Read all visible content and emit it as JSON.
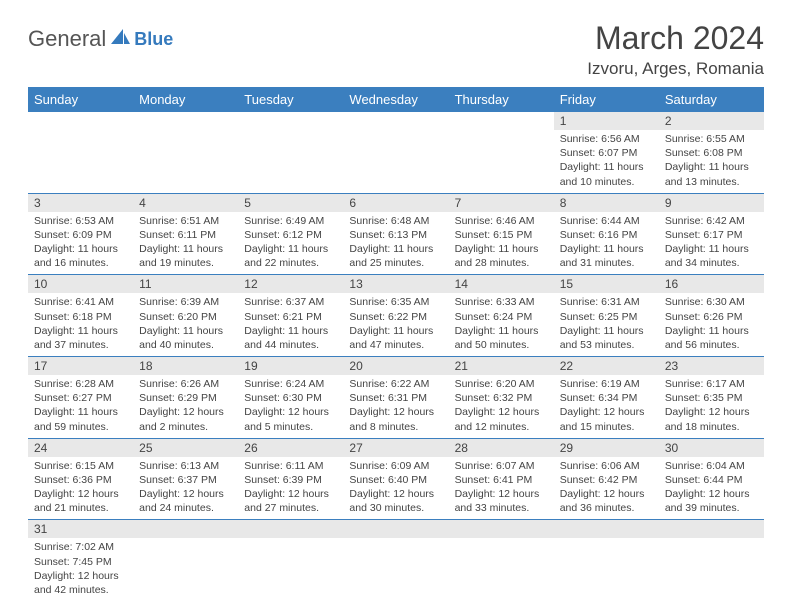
{
  "logo": {
    "text1": "General",
    "text2": "Blue"
  },
  "title": "March 2024",
  "location": "Izvoru, Arges, Romania",
  "colors": {
    "header_bg": "#3b7fbf",
    "daynum_bg": "#e8e8e8",
    "border": "#3b7fbf",
    "text": "#444444",
    "logo_gray": "#555555",
    "logo_blue": "#357abd"
  },
  "day_headers": [
    "Sunday",
    "Monday",
    "Tuesday",
    "Wednesday",
    "Thursday",
    "Friday",
    "Saturday"
  ],
  "weeks": [
    [
      null,
      null,
      null,
      null,
      null,
      {
        "n": "1",
        "sr": "6:56 AM",
        "ss": "6:07 PM",
        "dl": "11 hours and 10 minutes."
      },
      {
        "n": "2",
        "sr": "6:55 AM",
        "ss": "6:08 PM",
        "dl": "11 hours and 13 minutes."
      }
    ],
    [
      {
        "n": "3",
        "sr": "6:53 AM",
        "ss": "6:09 PM",
        "dl": "11 hours and 16 minutes."
      },
      {
        "n": "4",
        "sr": "6:51 AM",
        "ss": "6:11 PM",
        "dl": "11 hours and 19 minutes."
      },
      {
        "n": "5",
        "sr": "6:49 AM",
        "ss": "6:12 PM",
        "dl": "11 hours and 22 minutes."
      },
      {
        "n": "6",
        "sr": "6:48 AM",
        "ss": "6:13 PM",
        "dl": "11 hours and 25 minutes."
      },
      {
        "n": "7",
        "sr": "6:46 AM",
        "ss": "6:15 PM",
        "dl": "11 hours and 28 minutes."
      },
      {
        "n": "8",
        "sr": "6:44 AM",
        "ss": "6:16 PM",
        "dl": "11 hours and 31 minutes."
      },
      {
        "n": "9",
        "sr": "6:42 AM",
        "ss": "6:17 PM",
        "dl": "11 hours and 34 minutes."
      }
    ],
    [
      {
        "n": "10",
        "sr": "6:41 AM",
        "ss": "6:18 PM",
        "dl": "11 hours and 37 minutes."
      },
      {
        "n": "11",
        "sr": "6:39 AM",
        "ss": "6:20 PM",
        "dl": "11 hours and 40 minutes."
      },
      {
        "n": "12",
        "sr": "6:37 AM",
        "ss": "6:21 PM",
        "dl": "11 hours and 44 minutes."
      },
      {
        "n": "13",
        "sr": "6:35 AM",
        "ss": "6:22 PM",
        "dl": "11 hours and 47 minutes."
      },
      {
        "n": "14",
        "sr": "6:33 AM",
        "ss": "6:24 PM",
        "dl": "11 hours and 50 minutes."
      },
      {
        "n": "15",
        "sr": "6:31 AM",
        "ss": "6:25 PM",
        "dl": "11 hours and 53 minutes."
      },
      {
        "n": "16",
        "sr": "6:30 AM",
        "ss": "6:26 PM",
        "dl": "11 hours and 56 minutes."
      }
    ],
    [
      {
        "n": "17",
        "sr": "6:28 AM",
        "ss": "6:27 PM",
        "dl": "11 hours and 59 minutes."
      },
      {
        "n": "18",
        "sr": "6:26 AM",
        "ss": "6:29 PM",
        "dl": "12 hours and 2 minutes."
      },
      {
        "n": "19",
        "sr": "6:24 AM",
        "ss": "6:30 PM",
        "dl": "12 hours and 5 minutes."
      },
      {
        "n": "20",
        "sr": "6:22 AM",
        "ss": "6:31 PM",
        "dl": "12 hours and 8 minutes."
      },
      {
        "n": "21",
        "sr": "6:20 AM",
        "ss": "6:32 PM",
        "dl": "12 hours and 12 minutes."
      },
      {
        "n": "22",
        "sr": "6:19 AM",
        "ss": "6:34 PM",
        "dl": "12 hours and 15 minutes."
      },
      {
        "n": "23",
        "sr": "6:17 AM",
        "ss": "6:35 PM",
        "dl": "12 hours and 18 minutes."
      }
    ],
    [
      {
        "n": "24",
        "sr": "6:15 AM",
        "ss": "6:36 PM",
        "dl": "12 hours and 21 minutes."
      },
      {
        "n": "25",
        "sr": "6:13 AM",
        "ss": "6:37 PM",
        "dl": "12 hours and 24 minutes."
      },
      {
        "n": "26",
        "sr": "6:11 AM",
        "ss": "6:39 PM",
        "dl": "12 hours and 27 minutes."
      },
      {
        "n": "27",
        "sr": "6:09 AM",
        "ss": "6:40 PM",
        "dl": "12 hours and 30 minutes."
      },
      {
        "n": "28",
        "sr": "6:07 AM",
        "ss": "6:41 PM",
        "dl": "12 hours and 33 minutes."
      },
      {
        "n": "29",
        "sr": "6:06 AM",
        "ss": "6:42 PM",
        "dl": "12 hours and 36 minutes."
      },
      {
        "n": "30",
        "sr": "6:04 AM",
        "ss": "6:44 PM",
        "dl": "12 hours and 39 minutes."
      }
    ],
    [
      {
        "n": "31",
        "sr": "7:02 AM",
        "ss": "7:45 PM",
        "dl": "12 hours and 42 minutes."
      },
      null,
      null,
      null,
      null,
      null,
      null
    ]
  ],
  "labels": {
    "sunrise": "Sunrise:",
    "sunset": "Sunset:",
    "daylight": "Daylight:"
  }
}
